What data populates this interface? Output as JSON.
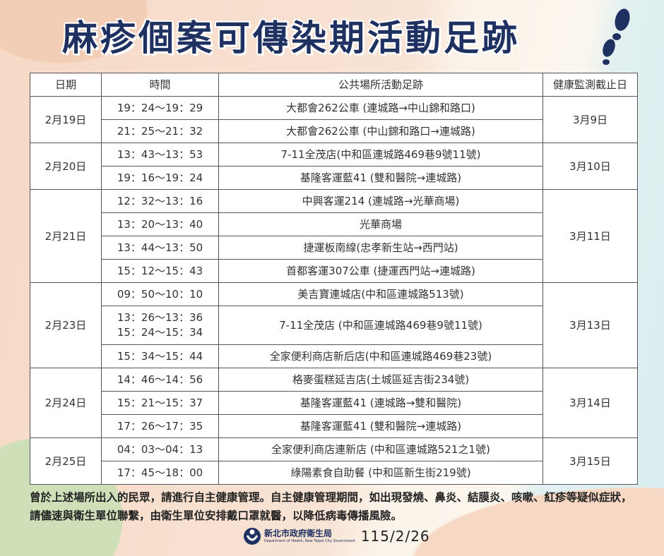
{
  "title": "麻疹個案可傳染期活動足跡",
  "table": {
    "headers": [
      "日期",
      "時間",
      "公共場所活動足跡",
      "健康監測截止日"
    ],
    "groups": [
      {
        "date": "2月19日",
        "deadline": "3月9日",
        "rows": [
          [
            "19：24～19：29",
            "大都會262公車 (連城路→中山錦和路口)"
          ],
          [
            "21：25～21：32",
            "大都會262公車 (中山錦和路口→連城路)"
          ]
        ]
      },
      {
        "date": "2月20日",
        "deadline": "3月10日",
        "rows": [
          [
            "13：43～13：53",
            "7-11全茂店(中和區連城路469巷9號11號)"
          ],
          [
            "19：16～19：24",
            "基隆客運藍41 (雙和醫院→連城路)"
          ]
        ]
      },
      {
        "date": "2月21日",
        "deadline": "3月11日",
        "rows": [
          [
            "12：32～13：16",
            "中興客運214 (連城路→光華商場)"
          ],
          [
            "13：20～13：40",
            "光華商場"
          ],
          [
            "13：44～13：50",
            "捷運板南線(忠孝新生站→西門站)"
          ],
          [
            "15：12～15：43",
            "首都客運307公車 (捷運西門站→連城路)"
          ]
        ]
      },
      {
        "date": "2月23日",
        "deadline": "3月13日",
        "rows": [
          [
            "09：50～10：10",
            "美吉寶連城店(中和區連城路513號)"
          ],
          [
            "13：26～13：36",
            "7-11全茂店 (中和區連城路469巷9號11號)",
            "15：24～15：34"
          ],
          [
            "15：34～15：44",
            "全家便利商店新后店(中和區連城路469巷23號)"
          ]
        ]
      },
      {
        "date": "2月24日",
        "deadline": "3月14日",
        "rows": [
          [
            "14：46～14：56",
            "格麥蛋糕延吉店(土城區延吉街234號)"
          ],
          [
            "15：21～15：37",
            "基隆客運藍41 (連城路→雙和醫院)"
          ],
          [
            "17：26～17：35",
            "基隆客運藍41 (雙和醫院→連城路)"
          ]
        ]
      },
      {
        "date": "2月25日",
        "deadline": "3月15日",
        "rows": [
          [
            "04：03～04：13",
            "全家便利商店連新店 (中和區連城路521之1號)"
          ],
          [
            "17：45～18：00",
            "綠陽素食自助餐 (中和區新生街219號)"
          ]
        ]
      }
    ]
  },
  "note": "曾於上述場所出入的民眾，請進行自主健康管理。自主健康管理期間，如出現發燒、鼻炎、結膜炎、咳嗽、紅疹等疑似症狀，請儘速與衛生單位聯繫，由衛生單位安排戴口罩就醫，以降低病毒傳播風險。",
  "footer": {
    "org_cn": "新北市政府衛生局",
    "org_en": "Department of Health, New Taipei City Government",
    "date": "115/2/26"
  },
  "colors": {
    "title": "#1f3161"
  }
}
